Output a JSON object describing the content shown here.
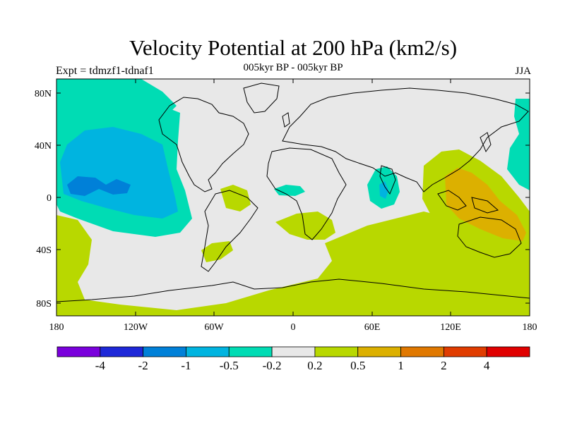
{
  "header": {
    "title": "Velocity Potential at 200 hPa (km2/s)",
    "subtitle": "005kyr BP - 005kyr BP",
    "left_label": "Expt = tdmzf1-tdnaf1",
    "right_label": "JJA"
  },
  "axes": {
    "y_ticks": [
      "80N",
      "40N",
      "0",
      "40S",
      "80S"
    ],
    "x_ticks": [
      "180",
      "120W",
      "60W",
      "0",
      "60E",
      "120E",
      "180"
    ]
  },
  "map": {
    "background_color": "#e8e8e8",
    "ocean_regions": [
      "North Pacific negative anomaly",
      "Maritime Continent positive anomaly",
      "Southern Ocean positive anomaly"
    ]
  },
  "colorbar": {
    "colors": [
      "#7a00dc",
      "#1e28d8",
      "#0080d8",
      "#00b4e0",
      "#00dcb4",
      "#e8e8e8",
      "#b8d800",
      "#dcb000",
      "#e07800",
      "#e03c00",
      "#e00000"
    ],
    "labels": [
      "-4",
      "-2",
      "-1",
      "-0.5",
      "-0.2",
      "0.2",
      "0.5",
      "1",
      "2",
      "4"
    ]
  }
}
